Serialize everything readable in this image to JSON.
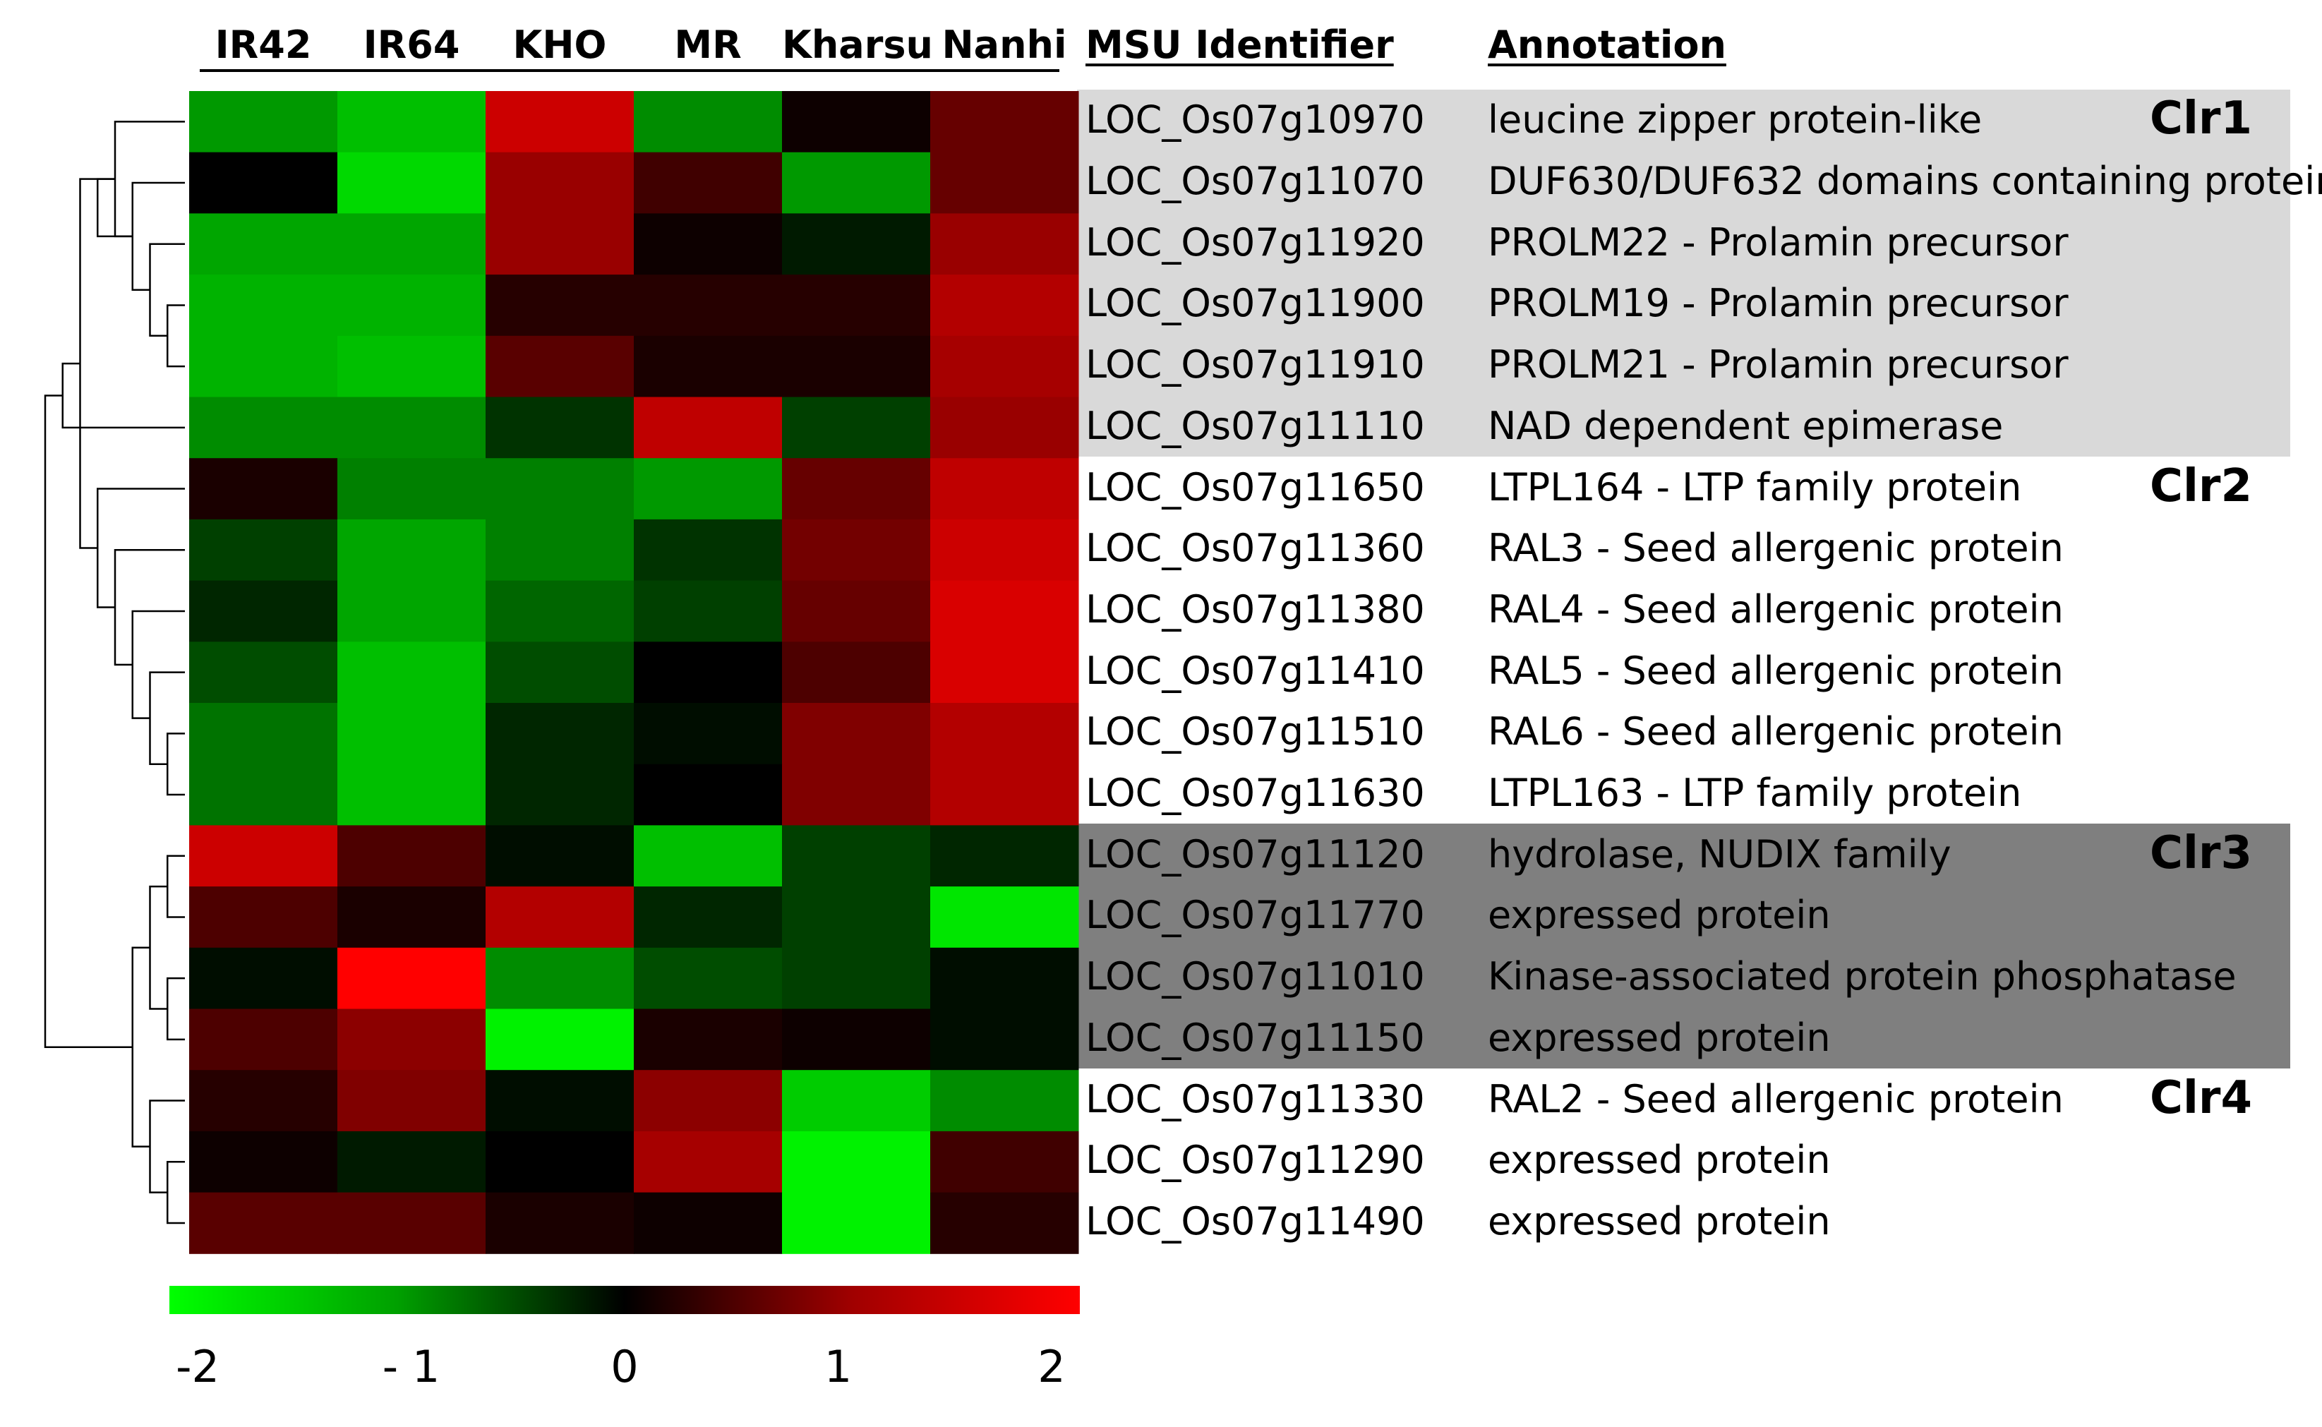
{
  "chart_data": {
    "type": "heatmap",
    "columns": [
      "IR42",
      "IR64",
      "KHO",
      "MR",
      "Kharsu",
      "Nanhi"
    ],
    "headers": {
      "id": "MSU Identifier",
      "annotation": "Annotation"
    },
    "rows": [
      {
        "id": "LOC_Os07g10970",
        "annotation": "leucine zipper protein-like"
      },
      {
        "id": "LOC_Os07g11070",
        "annotation": "DUF630/DUF632 domains containing protein"
      },
      {
        "id": "LOC_Os07g11920",
        "annotation": "PROLM22 - Prolamin precursor"
      },
      {
        "id": "LOC_Os07g11900",
        "annotation": "PROLM19 - Prolamin precursor"
      },
      {
        "id": "LOC_Os07g11910",
        "annotation": "PROLM21 - Prolamin precursor"
      },
      {
        "id": "LOC_Os07g11110",
        "annotation": "NAD dependent epimerase"
      },
      {
        "id": "LOC_Os07g11650",
        "annotation": "LTPL164 - LTP family protein"
      },
      {
        "id": "LOC_Os07g11360",
        "annotation": "RAL3 - Seed allergenic protein"
      },
      {
        "id": "LOC_Os07g11380",
        "annotation": "RAL4 - Seed allergenic protein"
      },
      {
        "id": "LOC_Os07g11410",
        "annotation": "RAL5 - Seed allergenic protein"
      },
      {
        "id": "LOC_Os07g11510",
        "annotation": "RAL6 - Seed allergenic protein"
      },
      {
        "id": "LOC_Os07g11630",
        "annotation": "LTPL163 - LTP family protein"
      },
      {
        "id": "LOC_Os07g11120",
        "annotation": "hydrolase, NUDIX family"
      },
      {
        "id": "LOC_Os07g11770",
        "annotation": "expressed protein"
      },
      {
        "id": "LOC_Os07g11010",
        "annotation": "Kinase-associated protein phosphatase"
      },
      {
        "id": "LOC_Os07g11150",
        "annotation": "expressed protein"
      },
      {
        "id": "LOC_Os07g11330",
        "annotation": "RAL2 - Seed allergenic protein"
      },
      {
        "id": "LOC_Os07g11290",
        "annotation": "expressed protein"
      },
      {
        "id": "LOC_Os07g11490",
        "annotation": "expressed protein"
      }
    ],
    "values": [
      [
        -1.2,
        -1.5,
        1.6,
        -1.1,
        0.1,
        0.8
      ],
      [
        0.0,
        -1.7,
        1.2,
        0.5,
        -1.2,
        0.8
      ],
      [
        -1.3,
        -1.3,
        1.2,
        0.1,
        -0.2,
        1.2
      ],
      [
        -1.4,
        -1.4,
        0.3,
        0.3,
        0.3,
        1.4
      ],
      [
        -1.4,
        -1.5,
        0.7,
        0.2,
        0.2,
        1.3
      ],
      [
        -1.1,
        -1.1,
        -0.4,
        1.5,
        -0.5,
        1.2
      ],
      [
        0.2,
        -1.0,
        -1.0,
        -1.2,
        0.8,
        1.5
      ],
      [
        -0.5,
        -1.3,
        -1.0,
        -0.4,
        0.9,
        1.6
      ],
      [
        -0.3,
        -1.3,
        -0.8,
        -0.5,
        0.8,
        1.7
      ],
      [
        -0.6,
        -1.5,
        -0.6,
        0.0,
        0.6,
        1.7
      ],
      [
        -0.9,
        -1.5,
        -0.3,
        -0.1,
        1.0,
        1.4
      ],
      [
        -0.9,
        -1.5,
        -0.3,
        0.0,
        1.0,
        1.4
      ],
      [
        1.6,
        0.6,
        -0.1,
        -1.5,
        -0.5,
        -0.3
      ],
      [
        0.6,
        0.2,
        1.4,
        -0.3,
        -0.5,
        -1.8
      ],
      [
        -0.1,
        2.0,
        -1.1,
        -0.6,
        -0.5,
        -0.1
      ],
      [
        0.6,
        1.1,
        -1.9,
        0.2,
        0.1,
        -0.1
      ],
      [
        0.3,
        1.0,
        -0.1,
        1.1,
        -1.6,
        -1.1
      ],
      [
        0.1,
        -0.2,
        0.0,
        1.3,
        -1.9,
        0.5
      ],
      [
        0.7,
        0.7,
        0.2,
        0.1,
        -1.9,
        0.3
      ]
    ],
    "clusters": [
      {
        "label": "Clr1",
        "first_row": 0,
        "last_row": 5,
        "band_color": "#d9d9d9"
      },
      {
        "label": "Clr2",
        "first_row": 6,
        "last_row": 11,
        "band_color": "#ffffff"
      },
      {
        "label": "Clr3",
        "first_row": 12,
        "last_row": 15,
        "band_color": "#7f7f7f"
      },
      {
        "label": "Clr4",
        "first_row": 16,
        "last_row": 18,
        "band_color": "#ffffff"
      }
    ],
    "color_scale": {
      "min": -2,
      "max": 2,
      "low_color": "#00ff00",
      "mid_color": "#000000",
      "high_color": "#ff0000",
      "tick_labels": [
        "-2",
        "- 1",
        "0",
        "1",
        "2"
      ],
      "tick_values": [
        -2,
        -1,
        0,
        1,
        2
      ]
    },
    "dendrogram": {
      "merges": [
        [
          3,
          4
        ],
        [
          2,
          19
        ],
        [
          1,
          20
        ],
        [
          0,
          21
        ],
        [
          21,
          22
        ],
        [
          10,
          11
        ],
        [
          9,
          24
        ],
        [
          8,
          25
        ],
        [
          7,
          26
        ],
        [
          6,
          27
        ],
        [
          22,
          28
        ],
        [
          5,
          29
        ],
        [
          12,
          13
        ],
        [
          14,
          15
        ],
        [
          31,
          32
        ],
        [
          17,
          18
        ],
        [
          16,
          34
        ],
        [
          33,
          35
        ],
        [
          30,
          36
        ]
      ]
    }
  }
}
